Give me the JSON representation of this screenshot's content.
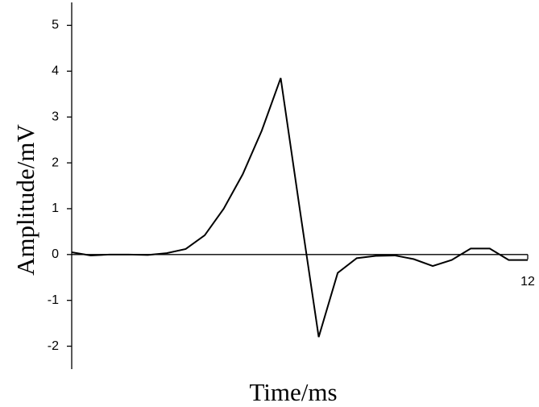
{
  "chart_data": {
    "type": "line",
    "x_label": "Time/ms",
    "y_label": "Amplitude/mV",
    "x": [
      0,
      0.5,
      1,
      1.5,
      2,
      2.5,
      3,
      3.5,
      4,
      4.5,
      5,
      5.5,
      6,
      6.5,
      7,
      7.5,
      8,
      8.5,
      9,
      9.5,
      10,
      10.5,
      11,
      11.5,
      12
    ],
    "series": [
      {
        "color": "#000000",
        "values": [
          0.05,
          -0.02,
          0.0,
          0.0,
          -0.01,
          0.03,
          0.12,
          0.42,
          1.0,
          1.75,
          2.7,
          3.85,
          1.0,
          -1.8,
          -0.4,
          -0.08,
          -0.03,
          -0.02,
          -0.1,
          -0.25,
          -0.12,
          0.13,
          0.13,
          -0.12,
          -0.12
        ]
      }
    ],
    "xlim": [
      0,
      12
    ],
    "xticks": [
      12
    ],
    "ylim": [
      -2.5,
      5.5
    ],
    "yticks": [
      -2,
      -1,
      0,
      1,
      2,
      3,
      4,
      5
    ]
  }
}
